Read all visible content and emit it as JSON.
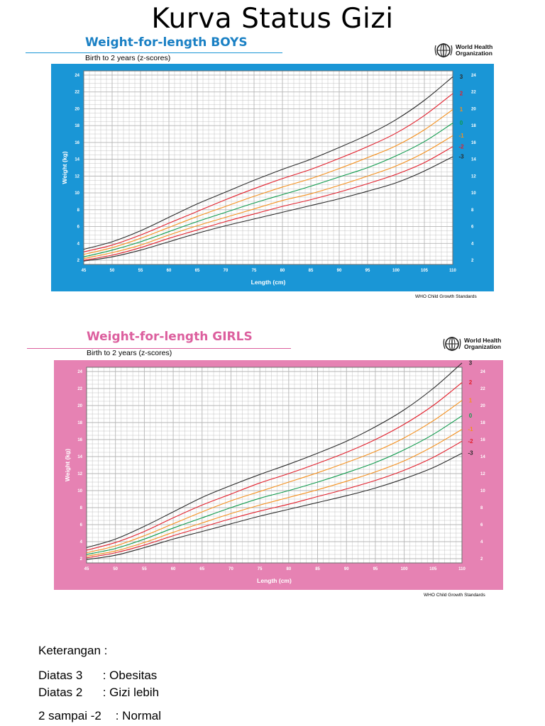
{
  "title": "Kurva Status Gizi",
  "chart_data": [
    {
      "id": "boys",
      "type": "line",
      "title": "Weight-for-length BOYS",
      "subtitle": "Birth to 2 years (z-scores)",
      "source": "WHO Child Growth Standards",
      "org": {
        "line1": "World Health",
        "line2": "Organization"
      },
      "xlabel": "Length (cm)",
      "ylabel": "Weight (kg)",
      "xlim": [
        45,
        110
      ],
      "ylim": [
        1.5,
        24.5
      ],
      "x_ticks": [
        45,
        50,
        55,
        60,
        65,
        70,
        75,
        80,
        85,
        90,
        95,
        100,
        105,
        110
      ],
      "y_ticks": [
        2,
        4,
        6,
        8,
        10,
        12,
        14,
        16,
        18,
        20,
        22,
        24
      ],
      "grid": true,
      "colors": {
        "frame": "#1a96d6",
        "title": "#1a80c4",
        "rule": "#1a96d6",
        "plot": "#ffffff",
        "grid": "#b5b5b5"
      },
      "x": [
        45,
        50,
        55,
        60,
        65,
        70,
        75,
        80,
        85,
        90,
        95,
        100,
        105,
        110
      ],
      "series": [
        {
          "name": "3",
          "color": "#2b2b2b",
          "values": [
            3.3,
            4.2,
            5.5,
            7.1,
            8.7,
            10.1,
            11.5,
            12.8,
            14.0,
            15.4,
            16.9,
            18.7,
            21.0,
            23.8
          ]
        },
        {
          "name": "2",
          "color": "#e2202c",
          "values": [
            3.0,
            3.8,
            5.0,
            6.4,
            7.8,
            9.2,
            10.5,
            11.7,
            12.8,
            14.1,
            15.5,
            17.1,
            19.2,
            21.8
          ]
        },
        {
          "name": "1",
          "color": "#f4901e",
          "values": [
            2.7,
            3.5,
            4.6,
            5.9,
            7.2,
            8.4,
            9.6,
            10.7,
            11.7,
            12.9,
            14.2,
            15.6,
            17.5,
            19.9
          ]
        },
        {
          "name": "0",
          "color": "#0f9a4c",
          "values": [
            2.4,
            3.2,
            4.2,
            5.4,
            6.6,
            7.7,
            8.8,
            9.8,
            10.8,
            11.9,
            13.0,
            14.4,
            16.1,
            18.3
          ]
        },
        {
          "name": "-1",
          "color": "#f4901e",
          "values": [
            2.2,
            2.9,
            3.8,
            5.0,
            6.1,
            7.1,
            8.1,
            9.1,
            9.9,
            10.9,
            12.0,
            13.2,
            14.8,
            16.8
          ]
        },
        {
          "name": "-2",
          "color": "#e2202c",
          "values": [
            2.0,
            2.6,
            3.5,
            4.6,
            5.6,
            6.6,
            7.5,
            8.4,
            9.2,
            10.1,
            11.1,
            12.2,
            13.6,
            15.5
          ]
        },
        {
          "name": "-3",
          "color": "#2b2b2b",
          "values": [
            1.9,
            2.4,
            3.2,
            4.2,
            5.2,
            6.1,
            6.9,
            7.7,
            8.5,
            9.3,
            10.2,
            11.2,
            12.6,
            14.3
          ]
        }
      ]
    },
    {
      "id": "girls",
      "type": "line",
      "title": "Weight-for-length GIRLS",
      "subtitle": "Birth to 2 years (z-scores)",
      "source": "WHO Child Growth Standards",
      "org": {
        "line1": "World Health",
        "line2": "Organization"
      },
      "xlabel": "Length (cm)",
      "ylabel": "Weight (kg)",
      "xlim": [
        45,
        110
      ],
      "ylim": [
        1.5,
        24.5
      ],
      "x_ticks": [
        45,
        50,
        55,
        60,
        65,
        70,
        75,
        80,
        85,
        90,
        95,
        100,
        105,
        110
      ],
      "y_ticks": [
        2,
        4,
        6,
        8,
        10,
        12,
        14,
        16,
        18,
        20,
        22,
        24
      ],
      "grid": true,
      "colors": {
        "frame": "#e682b3",
        "title": "#dc5f9e",
        "rule": "#dc5f9e",
        "plot": "#ffffff",
        "grid": "#b5b5b5"
      },
      "x": [
        45,
        50,
        55,
        60,
        65,
        70,
        75,
        80,
        85,
        90,
        95,
        100,
        105,
        110
      ],
      "series": [
        {
          "name": "3",
          "color": "#2b2b2b",
          "values": [
            3.3,
            4.3,
            5.8,
            7.5,
            9.2,
            10.6,
            11.9,
            13.1,
            14.4,
            15.8,
            17.5,
            19.5,
            22.0,
            25.0
          ]
        },
        {
          "name": "2",
          "color": "#e2202c",
          "values": [
            3.0,
            3.9,
            5.2,
            6.8,
            8.3,
            9.6,
            10.9,
            12.0,
            13.2,
            14.5,
            16.0,
            17.8,
            20.0,
            22.7
          ]
        },
        {
          "name": "1",
          "color": "#f4901e",
          "values": [
            2.7,
            3.5,
            4.7,
            6.1,
            7.5,
            8.8,
            9.9,
            11.0,
            12.1,
            13.3,
            14.6,
            16.2,
            18.2,
            20.6
          ]
        },
        {
          "name": "0",
          "color": "#0f9a4c",
          "values": [
            2.5,
            3.2,
            4.3,
            5.6,
            6.8,
            8.0,
            9.1,
            10.0,
            11.0,
            12.1,
            13.3,
            14.8,
            16.6,
            18.8
          ]
        },
        {
          "name": "-1",
          "color": "#f4901e",
          "values": [
            2.3,
            2.9,
            3.9,
            5.1,
            6.2,
            7.3,
            8.3,
            9.2,
            10.1,
            11.1,
            12.2,
            13.5,
            15.2,
            17.2
          ]
        },
        {
          "name": "-2",
          "color": "#e2202c",
          "values": [
            2.1,
            2.7,
            3.6,
            4.7,
            5.7,
            6.7,
            7.6,
            8.4,
            9.3,
            10.2,
            11.2,
            12.4,
            13.9,
            15.8
          ]
        },
        {
          "name": "-3",
          "color": "#2b2b2b",
          "values": [
            1.9,
            2.4,
            3.3,
            4.3,
            5.2,
            6.1,
            7.0,
            7.8,
            8.6,
            9.4,
            10.3,
            11.4,
            12.7,
            14.4
          ]
        }
      ]
    }
  ],
  "legend": {
    "title": "Keterangan :",
    "items": [
      {
        "key": "Diatas 3",
        "label": ": Obesitas"
      },
      {
        "key": "Diatas 2",
        "label": ": Gizi lebih"
      },
      {
        "key": "2 sampai -2",
        "label": ": Normal"
      }
    ]
  }
}
